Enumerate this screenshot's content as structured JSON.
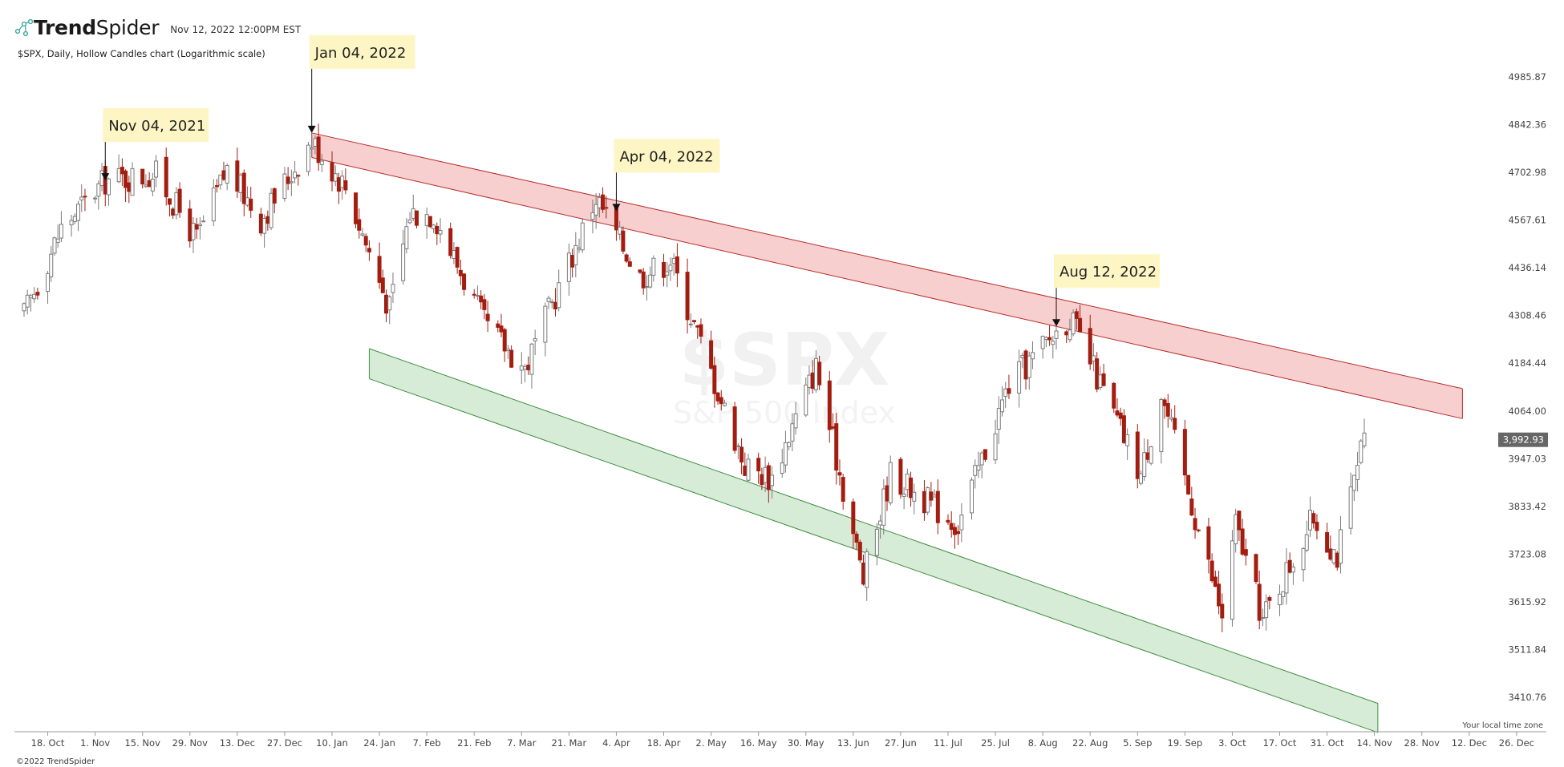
{
  "header": {
    "brand_bold": "Trend",
    "brand_light": "Spider",
    "timestamp": "Nov 12, 2022 12:00PM EST",
    "subtitle": "$SPX, Daily, Hollow Candles chart (Logarithmic scale)",
    "logo_icon": "trendspider-logo-icon"
  },
  "footer": {
    "copyright": "©2022 TrendSpider",
    "timezone": "Your local time zone"
  },
  "colors": {
    "bear_candle": "#a31d10",
    "bull_candle": "#7a7a7a",
    "resistance_fill": "#f8cfcf",
    "resistance_line": "#b52c2c",
    "support_fill": "#d6ecd6",
    "support_line": "#3f8d3f",
    "callout_bg": "#fdf6c4",
    "price_badge": "#666666"
  },
  "watermark": {
    "symbol": "$SPX",
    "name": "S&P 500 Index"
  },
  "chart_data": {
    "type": "candlestick",
    "scale": "log",
    "ylim": [
      3350,
      5050
    ],
    "y_ticks": [
      4985.87,
      4842.36,
      4702.98,
      4567.61,
      4436.14,
      4308.46,
      4184.44,
      4064.0,
      3947.03,
      3833.42,
      3723.08,
      3615.92,
      3511.84,
      3410.76
    ],
    "x_ticks": [
      "18. Oct",
      "1. Nov",
      "15. Nov",
      "29. Nov",
      "13. Dec",
      "27. Dec",
      "10. Jan",
      "24. Jan",
      "7. Feb",
      "21. Feb",
      "7. Mar",
      "21. Mar",
      "4. Apr",
      "18. Apr",
      "2. May",
      "16. May",
      "30. May",
      "13. Jun",
      "27. Jun",
      "11. Jul",
      "25. Jul",
      "8. Aug",
      "22. Aug",
      "5. Sep",
      "19. Sep",
      "3. Oct",
      "17. Oct",
      "31. Oct",
      "14. Nov",
      "28. Nov",
      "12. Dec",
      "26. Dec"
    ],
    "x_range": [
      "2021-10-11",
      "2022-12-31"
    ],
    "last_price": "3,992.93",
    "annotations": [
      {
        "label": "Nov 04, 2021",
        "date": "2021-11-04",
        "price": 4680
      },
      {
        "label": "Jan 04, 2022",
        "date": "2022-01-04",
        "price": 4818
      },
      {
        "label": "Apr 04, 2022",
        "date": "2022-04-04",
        "price": 4593
      },
      {
        "label": "Aug 12, 2022",
        "date": "2022-08-12",
        "price": 4280
      }
    ],
    "channels": [
      {
        "name": "resistance",
        "start": {
          "date": "2022-01-04",
          "upper": 4818,
          "lower": 4746
        },
        "end": {
          "date": "2022-12-10",
          "upper": 4120,
          "lower": 4045
        }
      },
      {
        "name": "support",
        "start": {
          "date": "2022-01-21",
          "upper": 4222,
          "lower": 4145
        },
        "end": {
          "date": "2022-11-15",
          "upper": 3398,
          "lower": 3338
        }
      }
    ],
    "anchors": [
      {
        "date": "2021-10-11",
        "close": 4310
      },
      {
        "date": "2021-10-22",
        "close": 4545
      },
      {
        "date": "2021-11-04",
        "close": 4680
      },
      {
        "date": "2021-11-19",
        "close": 4697
      },
      {
        "date": "2021-12-01",
        "close": 4515
      },
      {
        "date": "2021-12-10",
        "close": 4712
      },
      {
        "date": "2021-12-20",
        "close": 4570
      },
      {
        "date": "2022-01-04",
        "close": 4794
      },
      {
        "date": "2022-01-14",
        "close": 4662
      },
      {
        "date": "2022-01-27",
        "close": 4326
      },
      {
        "date": "2022-02-02",
        "close": 4589
      },
      {
        "date": "2022-02-09",
        "close": 4587
      },
      {
        "date": "2022-02-24",
        "close": 4288
      },
      {
        "date": "2022-03-08",
        "close": 4170
      },
      {
        "date": "2022-03-29",
        "close": 4631
      },
      {
        "date": "2022-04-11",
        "close": 4413
      },
      {
        "date": "2022-04-20",
        "close": 4459
      },
      {
        "date": "2022-05-12",
        "close": 3930
      },
      {
        "date": "2022-05-20",
        "close": 3901
      },
      {
        "date": "2022-06-02",
        "close": 4176
      },
      {
        "date": "2022-06-16",
        "close": 3667
      },
      {
        "date": "2022-06-24",
        "close": 3912
      },
      {
        "date": "2022-07-14",
        "close": 3790
      },
      {
        "date": "2022-07-29",
        "close": 4130
      },
      {
        "date": "2022-08-16",
        "close": 4305
      },
      {
        "date": "2022-09-06",
        "close": 3908
      },
      {
        "date": "2022-09-12",
        "close": 4110
      },
      {
        "date": "2022-09-30",
        "close": 3585
      },
      {
        "date": "2022-10-04",
        "close": 3791
      },
      {
        "date": "2022-10-12",
        "close": 3577
      },
      {
        "date": "2022-10-27",
        "close": 3807
      },
      {
        "date": "2022-11-03",
        "close": 3720
      },
      {
        "date": "2022-11-11",
        "close": 3993
      }
    ]
  }
}
